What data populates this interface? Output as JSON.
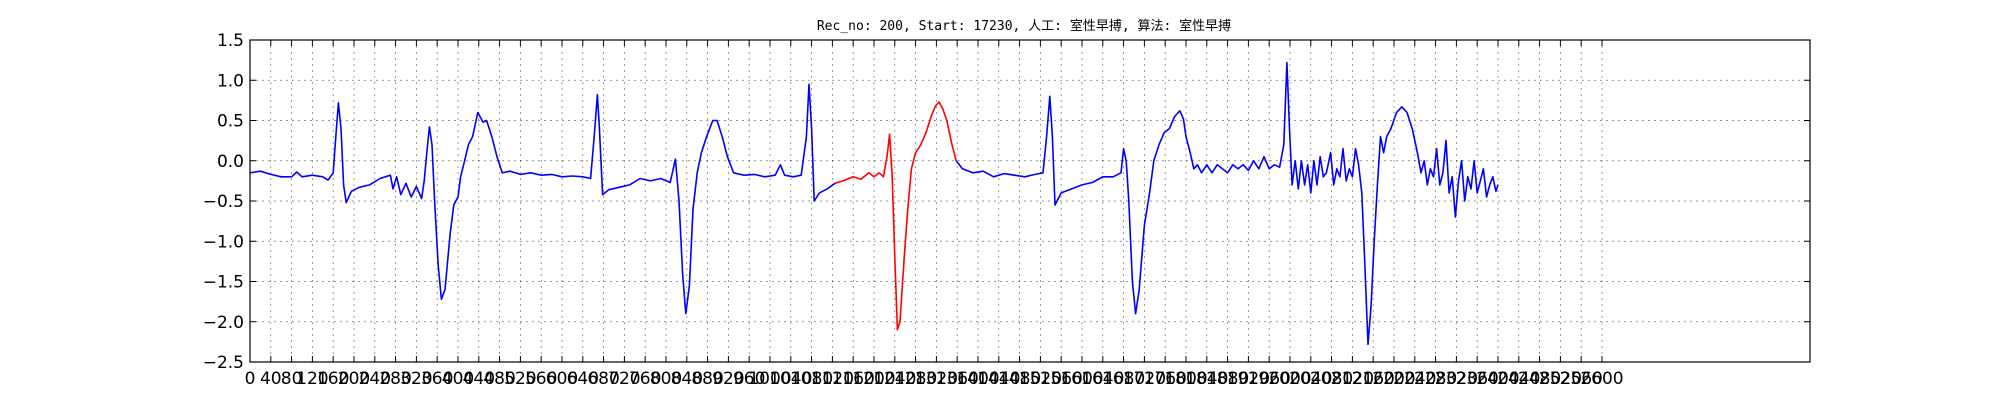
{
  "chart_data": {
    "type": "line",
    "title": "Rec_no: 200, Start: 17230, 人工: 室性早搏, 算法: 室性早搏",
    "xlabel": "",
    "ylabel": "",
    "xlim": [
      0,
      2600
    ],
    "ylim": [
      -2.5,
      1.5
    ],
    "grid": true,
    "yticks": [
      1.5,
      1.0,
      0.5,
      0.0,
      -0.5,
      -1.0,
      -1.5,
      -2.0,
      -2.5
    ],
    "ytick_labels": [
      "1.5",
      "1.0",
      "0.5",
      "0.0",
      "−0.5",
      "−1.0",
      "−1.5",
      "−2.0",
      "−2.5"
    ],
    "xtick_step": 40,
    "xtick_labels": [
      "0",
      "40",
      "80",
      "120",
      "160",
      "200",
      "240",
      "280",
      "320",
      "360",
      "400",
      "440",
      "480",
      "520",
      "560",
      "600",
      "640",
      "680",
      "720",
      "760",
      "800",
      "840",
      "880",
      "920",
      "960",
      "1000",
      "1040",
      "1080",
      "1120",
      "1160",
      "1200",
      "1240",
      "1280",
      "1320",
      "1360",
      "1400",
      "1440",
      "1480",
      "1520",
      "1560",
      "1600",
      "1640",
      "1680",
      "1720",
      "1760",
      "1800",
      "1840",
      "1880",
      "1920",
      "1960",
      "2000",
      "2040",
      "2080",
      "2120",
      "2160",
      "2200",
      "2240",
      "2280",
      "2320",
      "2360",
      "2400",
      "2440",
      "2480",
      "2520",
      "2560",
      "2600"
    ],
    "series": [
      {
        "color": "#0000ff",
        "points": [
          [
            0,
            -0.15
          ],
          [
            20,
            -0.13
          ],
          [
            40,
            -0.17
          ],
          [
            60,
            -0.2
          ],
          [
            80,
            -0.2
          ],
          [
            90,
            -0.14
          ],
          [
            100,
            -0.2
          ],
          [
            120,
            -0.18
          ],
          [
            140,
            -0.2
          ],
          [
            150,
            -0.24
          ],
          [
            160,
            -0.15
          ],
          [
            165,
            0.3
          ],
          [
            170,
            0.72
          ],
          [
            175,
            0.4
          ],
          [
            180,
            -0.3
          ],
          [
            185,
            -0.52
          ],
          [
            195,
            -0.38
          ],
          [
            210,
            -0.33
          ],
          [
            230,
            -0.3
          ],
          [
            250,
            -0.22
          ],
          [
            270,
            -0.18
          ],
          [
            275,
            -0.35
          ],
          [
            282,
            -0.2
          ],
          [
            290,
            -0.42
          ],
          [
            300,
            -0.28
          ],
          [
            310,
            -0.45
          ],
          [
            320,
            -0.32
          ],
          [
            330,
            -0.47
          ],
          [
            335,
            -0.25
          ],
          [
            340,
            0.1
          ],
          [
            345,
            0.42
          ],
          [
            350,
            0.2
          ],
          [
            355,
            -0.5
          ],
          [
            362,
            -1.3
          ],
          [
            368,
            -1.72
          ],
          [
            375,
            -1.6
          ],
          [
            385,
            -0.9
          ],
          [
            392,
            -0.55
          ],
          [
            400,
            -0.45
          ],
          [
            405,
            -0.2
          ],
          [
            412,
            -0.02
          ],
          [
            420,
            0.2
          ],
          [
            428,
            0.3
          ],
          [
            438,
            0.6
          ],
          [
            448,
            0.48
          ],
          [
            455,
            0.5
          ],
          [
            465,
            0.3
          ],
          [
            475,
            0.05
          ],
          [
            485,
            -0.15
          ],
          [
            500,
            -0.13
          ],
          [
            520,
            -0.17
          ],
          [
            540,
            -0.15
          ],
          [
            560,
            -0.18
          ],
          [
            580,
            -0.17
          ],
          [
            600,
            -0.2
          ],
          [
            620,
            -0.19
          ],
          [
            640,
            -0.2
          ],
          [
            655,
            -0.22
          ],
          [
            662,
            0.3
          ],
          [
            668,
            0.82
          ],
          [
            672,
            0.4
          ],
          [
            678,
            -0.42
          ],
          [
            690,
            -0.36
          ],
          [
            710,
            -0.33
          ],
          [
            730,
            -0.3
          ],
          [
            750,
            -0.22
          ],
          [
            770,
            -0.25
          ],
          [
            790,
            -0.22
          ],
          [
            808,
            -0.27
          ],
          [
            818,
            0.02
          ],
          [
            825,
            -0.5
          ],
          [
            832,
            -1.4
          ],
          [
            838,
            -1.9
          ],
          [
            845,
            -1.55
          ],
          [
            852,
            -0.6
          ],
          [
            860,
            -0.15
          ],
          [
            868,
            0.1
          ],
          [
            878,
            0.3
          ],
          [
            890,
            0.5
          ],
          [
            898,
            0.5
          ],
          [
            908,
            0.3
          ],
          [
            918,
            0.05
          ],
          [
            930,
            -0.15
          ],
          [
            950,
            -0.18
          ],
          [
            970,
            -0.17
          ],
          [
            990,
            -0.2
          ],
          [
            1010,
            -0.18
          ],
          [
            1020,
            -0.05
          ],
          [
            1028,
            -0.18
          ],
          [
            1045,
            -0.2
          ],
          [
            1060,
            -0.18
          ],
          [
            1070,
            0.3
          ],
          [
            1075,
            0.95
          ],
          [
            1080,
            0.4
          ],
          [
            1085,
            -0.5
          ],
          [
            1095,
            -0.4
          ],
          [
            1110,
            -0.35
          ],
          [
            1125,
            -0.28
          ]
        ]
      },
      {
        "color": "#ff0000",
        "points": [
          [
            1125,
            -0.28
          ],
          [
            1140,
            -0.25
          ],
          [
            1160,
            -0.2
          ],
          [
            1175,
            -0.23
          ],
          [
            1190,
            -0.15
          ],
          [
            1200,
            -0.2
          ],
          [
            1210,
            -0.15
          ],
          [
            1218,
            -0.2
          ],
          [
            1225,
            0.05
          ],
          [
            1230,
            0.33
          ],
          [
            1235,
            -0.2
          ],
          [
            1240,
            -1.2
          ],
          [
            1245,
            -2.1
          ],
          [
            1250,
            -2.0
          ],
          [
            1258,
            -1.2
          ],
          [
            1265,
            -0.6
          ],
          [
            1272,
            -0.1
          ],
          [
            1280,
            0.1
          ],
          [
            1290,
            0.2
          ],
          [
            1300,
            0.35
          ],
          [
            1310,
            0.55
          ],
          [
            1318,
            0.68
          ],
          [
            1325,
            0.73
          ],
          [
            1332,
            0.65
          ],
          [
            1340,
            0.5
          ],
          [
            1350,
            0.2
          ],
          [
            1358,
            0.0
          ]
        ]
      },
      {
        "color": "#0000ff",
        "points": [
          [
            1358,
            0.0
          ],
          [
            1370,
            -0.1
          ],
          [
            1390,
            -0.15
          ],
          [
            1410,
            -0.13
          ],
          [
            1430,
            -0.2
          ],
          [
            1450,
            -0.16
          ],
          [
            1470,
            -0.18
          ],
          [
            1490,
            -0.2
          ],
          [
            1510,
            -0.17
          ],
          [
            1525,
            -0.15
          ],
          [
            1532,
            0.3
          ],
          [
            1538,
            0.8
          ],
          [
            1543,
            0.3
          ],
          [
            1548,
            -0.55
          ],
          [
            1560,
            -0.4
          ],
          [
            1580,
            -0.35
          ],
          [
            1600,
            -0.3
          ],
          [
            1620,
            -0.27
          ],
          [
            1640,
            -0.2
          ],
          [
            1660,
            -0.2
          ],
          [
            1675,
            -0.15
          ],
          [
            1680,
            0.15
          ],
          [
            1685,
            0.0
          ],
          [
            1690,
            -0.5
          ],
          [
            1697,
            -1.5
          ],
          [
            1703,
            -1.9
          ],
          [
            1710,
            -1.6
          ],
          [
            1720,
            -0.8
          ],
          [
            1730,
            -0.4
          ],
          [
            1738,
            0.0
          ],
          [
            1748,
            0.2
          ],
          [
            1758,
            0.35
          ],
          [
            1768,
            0.4
          ],
          [
            1778,
            0.55
          ],
          [
            1788,
            0.62
          ],
          [
            1795,
            0.52
          ],
          [
            1800,
            0.3
          ],
          [
            1808,
            0.1
          ],
          [
            1815,
            -0.1
          ],
          [
            1822,
            -0.05
          ],
          [
            1830,
            -0.15
          ],
          [
            1840,
            -0.05
          ],
          [
            1850,
            -0.15
          ],
          [
            1860,
            -0.05
          ],
          [
            1870,
            -0.1
          ],
          [
            1880,
            -0.15
          ],
          [
            1890,
            -0.05
          ],
          [
            1900,
            -0.1
          ],
          [
            1910,
            -0.05
          ],
          [
            1920,
            -0.12
          ],
          [
            1930,
            0.0
          ],
          [
            1940,
            -0.1
          ],
          [
            1950,
            0.05
          ],
          [
            1960,
            -0.1
          ],
          [
            1970,
            -0.05
          ],
          [
            1980,
            -0.08
          ],
          [
            1988,
            0.2
          ],
          [
            1994,
            1.22
          ],
          [
            1999,
            0.4
          ],
          [
            2004,
            -0.3
          ],
          [
            2010,
            0.0
          ],
          [
            2016,
            -0.35
          ],
          [
            2022,
            0.0
          ],
          [
            2028,
            -0.3
          ],
          [
            2034,
            -0.05
          ],
          [
            2040,
            -0.4
          ],
          [
            2046,
            0.0
          ],
          [
            2052,
            -0.3
          ],
          [
            2058,
            0.05
          ],
          [
            2064,
            -0.2
          ],
          [
            2070,
            -0.15
          ],
          [
            2078,
            0.1
          ],
          [
            2084,
            -0.3
          ],
          [
            2090,
            -0.1
          ],
          [
            2096,
            -0.2
          ],
          [
            2102,
            0.15
          ],
          [
            2108,
            -0.25
          ],
          [
            2114,
            -0.1
          ],
          [
            2120,
            -0.2
          ],
          [
            2126,
            0.15
          ],
          [
            2132,
            -0.05
          ],
          [
            2138,
            -0.4
          ],
          [
            2144,
            -1.3
          ],
          [
            2150,
            -2.28
          ],
          [
            2156,
            -1.8
          ],
          [
            2162,
            -1.0
          ],
          [
            2168,
            -0.3
          ],
          [
            2174,
            0.3
          ],
          [
            2180,
            0.1
          ],
          [
            2186,
            0.3
          ],
          [
            2194,
            0.4
          ],
          [
            2205,
            0.6
          ],
          [
            2215,
            0.67
          ],
          [
            2225,
            0.6
          ],
          [
            2235,
            0.4
          ],
          [
            2245,
            0.1
          ],
          [
            2252,
            -0.15
          ],
          [
            2258,
            0.0
          ],
          [
            2264,
            -0.3
          ],
          [
            2270,
            -0.1
          ],
          [
            2276,
            -0.2
          ],
          [
            2282,
            0.15
          ],
          [
            2288,
            -0.3
          ],
          [
            2294,
            -0.15
          ],
          [
            2300,
            0.25
          ],
          [
            2306,
            -0.4
          ],
          [
            2312,
            -0.2
          ],
          [
            2318,
            -0.7
          ],
          [
            2324,
            -0.25
          ],
          [
            2330,
            0.0
          ],
          [
            2336,
            -0.5
          ],
          [
            2342,
            -0.2
          ],
          [
            2348,
            -0.35
          ],
          [
            2354,
            0.0
          ],
          [
            2360,
            -0.4
          ],
          [
            2366,
            -0.25
          ],
          [
            2372,
            -0.1
          ],
          [
            2378,
            -0.45
          ],
          [
            2384,
            -0.3
          ],
          [
            2390,
            -0.2
          ],
          [
            2396,
            -0.38
          ],
          [
            2400,
            -0.3
          ]
        ]
      }
    ]
  }
}
